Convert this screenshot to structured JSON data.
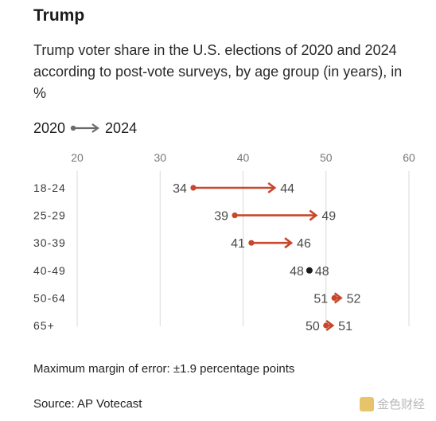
{
  "title": "Trump",
  "subtitle": "Trump voter share in the U.S. elections of 2020 and 2024 according to post-vote surveys, by age group (in years), in %",
  "legend": {
    "from_label": "2020",
    "to_label": "2024"
  },
  "note": "Maximum margin of error: ±1.9 percentage points",
  "source": "Source: AP Votecast",
  "watermark": "金色财经",
  "colors": {
    "increase": "#c8472b",
    "decrease": "#2f3f8f",
    "same": "#1a1a1a",
    "legend": "#6b6b6b",
    "grid": "#d9d9d9",
    "tick": "#777777"
  },
  "chart_data": {
    "type": "dumbbell-arrow",
    "x_ticks": [
      20,
      30,
      40,
      50,
      60
    ],
    "xlim": [
      20,
      60
    ],
    "categories": [
      "18-24",
      "25-29",
      "30-39",
      "40-49",
      "50-64",
      "65+"
    ],
    "series": [
      {
        "name": "2020",
        "values": [
          34,
          39,
          41,
          48,
          51,
          50
        ]
      },
      {
        "name": "2024",
        "values": [
          44,
          49,
          46,
          48,
          52,
          51
        ]
      }
    ],
    "grid": true
  }
}
